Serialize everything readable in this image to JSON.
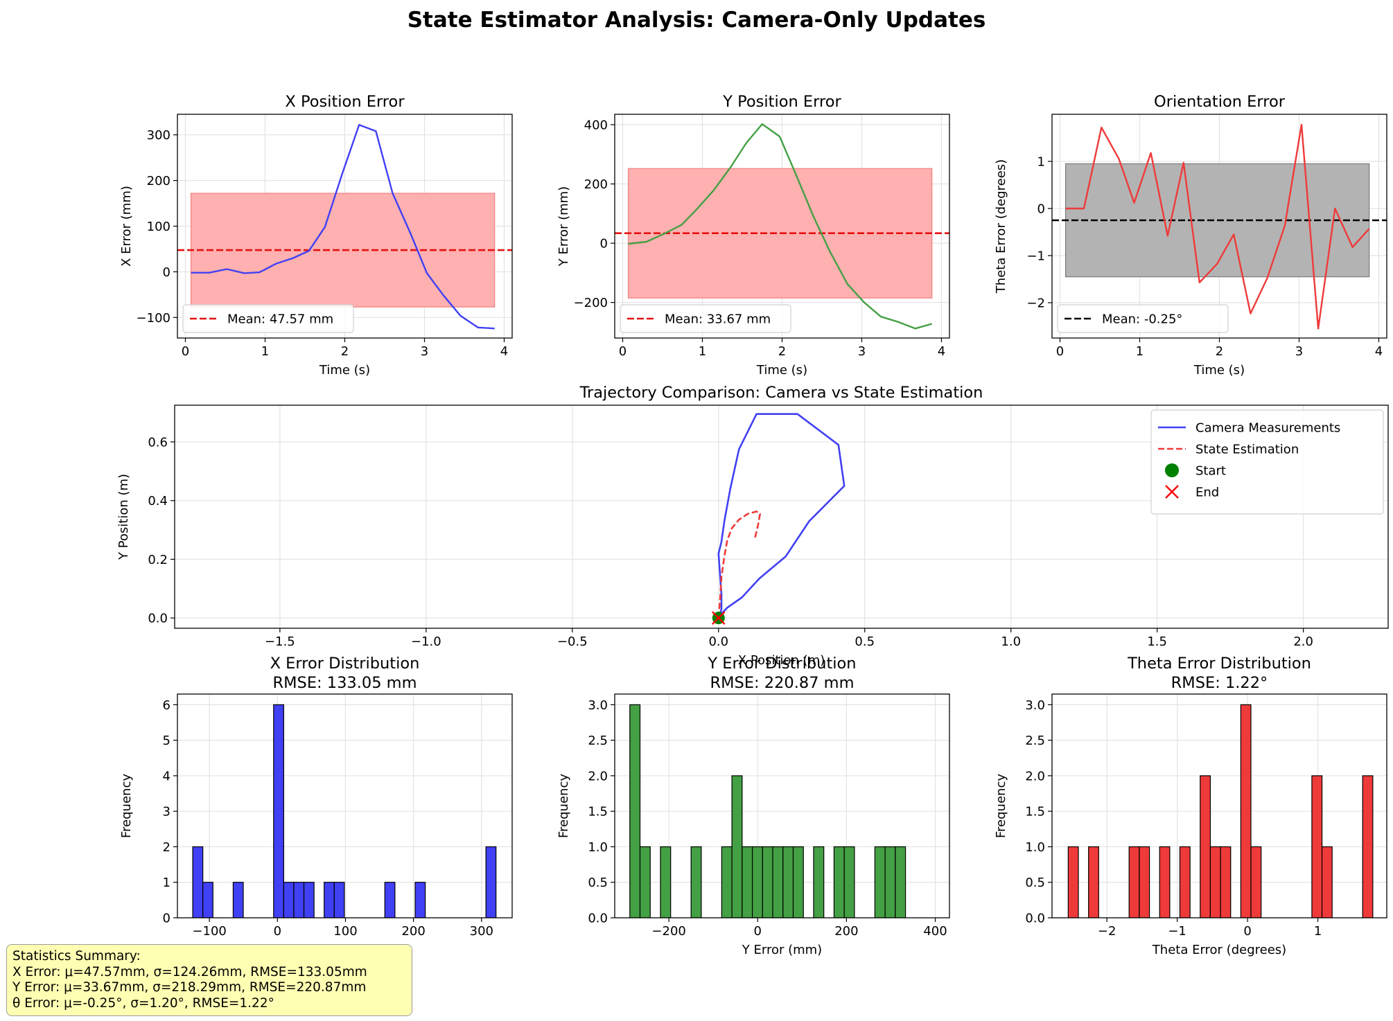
{
  "figure": {
    "title": "State Estimator Analysis: Camera-Only Updates",
    "stats_summary": {
      "heading": "Statistics Summary:",
      "lines": [
        "X Error: μ=47.57mm, σ=124.26mm, RMSE=133.05mm",
        "Y Error: μ=33.67mm, σ=218.29mm, RMSE=220.87mm",
        "θ Error: μ=-0.25°, σ=1.20°, RMSE=1.22°"
      ]
    }
  },
  "colors": {
    "x_series": "#4040f5",
    "y_series": "#44a044",
    "theta_series": "#ef3a3a",
    "mean_line": "#e51010",
    "band_red": "#ffb0b0",
    "band_gray": "#b3b3b3",
    "stats_box": "#ffffb4"
  },
  "chart_data": [
    {
      "id": "x-error",
      "type": "line",
      "title": "X Position Error",
      "xlabel": "Time (s)",
      "ylabel": "X Error (mm)",
      "xlim": [
        -0.1,
        4.1
      ],
      "ylim": [
        -145,
        345
      ],
      "xticks": [
        0,
        1,
        2,
        3,
        4
      ],
      "yticks": [
        -100,
        0,
        100,
        200,
        300
      ],
      "x": [
        0.07,
        0.3,
        0.52,
        0.74,
        0.93,
        1.14,
        1.35,
        1.55,
        1.75,
        1.97,
        2.18,
        2.39,
        2.6,
        2.82,
        3.03,
        3.24,
        3.45,
        3.67,
        3.88
      ],
      "y": [
        -2,
        -2,
        6,
        -3,
        -1,
        18,
        30,
        46,
        98,
        216,
        322,
        308,
        172,
        86,
        -3,
        -52,
        -96,
        -122,
        -124
      ],
      "mean": 47.57,
      "band": {
        "x0": 0.07,
        "x1": 3.88,
        "y0": -77,
        "y1": 172
      },
      "legend": "Mean: 47.57 mm",
      "color": "#4040f5",
      "band_color": "#ffb0b0",
      "mean_color": "#e51010",
      "grid": true,
      "legend_position": "lower-left"
    },
    {
      "id": "y-error",
      "type": "line",
      "title": "Y Position Error",
      "xlabel": "Time (s)",
      "ylabel": "Y Error (mm)",
      "xlim": [
        -0.1,
        4.1
      ],
      "ylim": [
        -320,
        435
      ],
      "xticks": [
        0,
        1,
        2,
        3,
        4
      ],
      "yticks": [
        -200,
        0,
        200,
        400
      ],
      "x": [
        0.07,
        0.3,
        0.52,
        0.74,
        0.93,
        1.14,
        1.35,
        1.55,
        1.75,
        1.97,
        2.18,
        2.39,
        2.6,
        2.82,
        3.03,
        3.24,
        3.45,
        3.67,
        3.88
      ],
      "y": [
        -2,
        5,
        32,
        62,
        115,
        178,
        255,
        338,
        402,
        360,
        228,
        92,
        -28,
        -138,
        -200,
        -248,
        -265,
        -288,
        -272
      ],
      "mean": 33.67,
      "band": {
        "x0": 0.07,
        "x1": 3.88,
        "y0": -185,
        "y1": 252
      },
      "legend": "Mean: 33.67 mm",
      "color": "#44a044",
      "band_color": "#ffb0b0",
      "mean_color": "#e51010",
      "grid": true,
      "legend_position": "lower-left"
    },
    {
      "id": "theta-error",
      "type": "line",
      "title": "Orientation Error",
      "xlabel": "Time (s)",
      "ylabel": "Theta Error (degrees)",
      "xlim": [
        -0.1,
        4.1
      ],
      "ylim": [
        -2.75,
        2.0
      ],
      "xticks": [
        0,
        1,
        2,
        3,
        4
      ],
      "yticks": [
        -2,
        -1,
        0,
        1
      ],
      "x": [
        0.07,
        0.3,
        0.52,
        0.74,
        0.93,
        1.14,
        1.35,
        1.55,
        1.75,
        1.97,
        2.18,
        2.39,
        2.6,
        2.82,
        3.03,
        3.24,
        3.45,
        3.67,
        3.88
      ],
      "y": [
        0.0,
        0.0,
        1.72,
        1.05,
        0.12,
        1.18,
        -0.58,
        0.97,
        -1.57,
        -1.18,
        -0.55,
        -2.23,
        -1.48,
        -0.37,
        1.78,
        -2.55,
        0.0,
        -0.82,
        -0.43
      ],
      "mean": -0.25,
      "band": {
        "x0": 0.07,
        "x1": 3.88,
        "y0": -1.45,
        "y1": 0.95
      },
      "legend": "Mean: -0.25°",
      "color": "#ef3a3a",
      "band_color": "#b3b3b3",
      "mean_color": "#000000",
      "grid": true,
      "legend_position": "lower-left"
    },
    {
      "id": "trajectory",
      "type": "line",
      "title": "Trajectory Comparison: Camera vs State Estimation",
      "xlabel": "X Position (m)",
      "ylabel": "Y Position (m)",
      "xlim": [
        -1.86,
        2.29
      ],
      "ylim": [
        -0.035,
        0.725
      ],
      "xticks": [
        -1.5,
        -1.0,
        -0.5,
        0.0,
        0.5,
        1.0,
        1.5,
        2.0
      ],
      "yticks": [
        0.0,
        0.2,
        0.4,
        0.6
      ],
      "series": [
        {
          "name": "Camera Measurements",
          "color": "#4040f5",
          "style": "solid",
          "x": [
            0.0,
            0.0,
            0.03,
            0.08,
            0.14,
            0.23,
            0.31,
            0.43,
            0.41,
            0.27,
            0.13,
            0.07,
            0.04,
            0.02,
            0.01,
            0.0,
            0.01,
            0.01,
            0.0
          ],
          "y": [
            0.0,
            0.005,
            0.035,
            0.07,
            0.135,
            0.21,
            0.33,
            0.45,
            0.59,
            0.695,
            0.695,
            0.575,
            0.44,
            0.33,
            0.26,
            0.22,
            0.08,
            0.03,
            0.0
          ]
        },
        {
          "name": "State Estimation",
          "color": "#ef3a3a",
          "style": "dashed",
          "x": [
            0.0,
            0.005,
            0.01,
            0.02,
            0.03,
            0.045,
            0.07,
            0.1,
            0.13,
            0.142,
            0.135,
            0.124
          ],
          "y": [
            0.0,
            0.06,
            0.14,
            0.21,
            0.265,
            0.305,
            0.335,
            0.355,
            0.363,
            0.355,
            0.315,
            0.27
          ]
        }
      ],
      "start": {
        "name": "Start",
        "x": 0.0,
        "y": 0.0,
        "color": "#008000"
      },
      "end": {
        "name": "End",
        "x": 0.0,
        "y": 0.0,
        "color": "#ff0000"
      },
      "grid": true,
      "legend_position": "upper-right"
    },
    {
      "id": "x-hist",
      "type": "bar",
      "title": "X Error Distribution",
      "subtitle": "RMSE: 133.05 mm",
      "xlabel": "X Error (mm)",
      "ylabel": "Frequency",
      "xlim": [
        -147,
        345
      ],
      "ylim": [
        0,
        6.3
      ],
      "xticks": [
        -100,
        0,
        100,
        200,
        300
      ],
      "yticks": [
        0,
        1,
        2,
        3,
        4,
        5,
        6
      ],
      "bin_width": 14.86,
      "bin_lefts": [
        -124.5,
        -109.64,
        -65.06,
        -5.62,
        9.24,
        24.1,
        38.96,
        68.68,
        83.54,
        157.84,
        202.42,
        306.44
      ],
      "counts": [
        2,
        1,
        1,
        6,
        1,
        1,
        1,
        1,
        1,
        1,
        1,
        2
      ],
      "color": "#4040f5",
      "grid": true
    },
    {
      "id": "y-hist",
      "type": "bar",
      "title": "Y Error Distribution",
      "subtitle": "RMSE: 220.87 mm",
      "xlabel": "Y Error (mm)",
      "ylabel": "Frequency",
      "xlim": [
        -322,
        432
      ],
      "ylim": [
        0,
        3.15
      ],
      "xticks": [
        -200,
        0,
        200,
        400
      ],
      "yticks": [
        0.0,
        0.5,
        1.0,
        1.5,
        2.0,
        2.5,
        3.0
      ],
      "bin_width": 23.0,
      "bin_lefts": [
        -288,
        -265,
        -219,
        -150,
        -81,
        -58,
        -35,
        -12,
        11,
        34,
        57,
        80,
        126,
        172,
        195,
        264,
        287,
        310
      ],
      "counts": [
        3,
        1,
        1,
        1,
        1,
        2,
        1,
        1,
        1,
        1,
        1,
        1,
        1,
        1,
        1,
        1,
        1,
        1
      ],
      "color": "#44a044",
      "grid": true
    },
    {
      "id": "theta-hist",
      "type": "bar",
      "title": "Theta Error Distribution",
      "subtitle": "RMSE: 1.22°",
      "xlabel": "Theta Error (degrees)",
      "ylabel": "Frequency",
      "xlim": [
        -2.78,
        1.98
      ],
      "ylim": [
        0,
        3.15
      ],
      "xticks": [
        -2,
        -1,
        0,
        1
      ],
      "yticks": [
        0.0,
        0.5,
        1.0,
        1.5,
        2.0,
        2.5,
        3.0
      ],
      "bin_width": 0.1444,
      "bin_lefts": [
        -2.55,
        -2.261,
        -1.684,
        -1.539,
        -1.25,
        -0.962,
        -0.673,
        -0.529,
        -0.384,
        -0.096,
        0.049,
        0.915,
        1.059,
        1.637
      ],
      "counts": [
        1,
        1,
        1,
        1,
        1,
        1,
        2,
        1,
        1,
        3,
        1,
        2,
        1,
        2
      ],
      "color": "#ef3a3a",
      "grid": true
    }
  ]
}
